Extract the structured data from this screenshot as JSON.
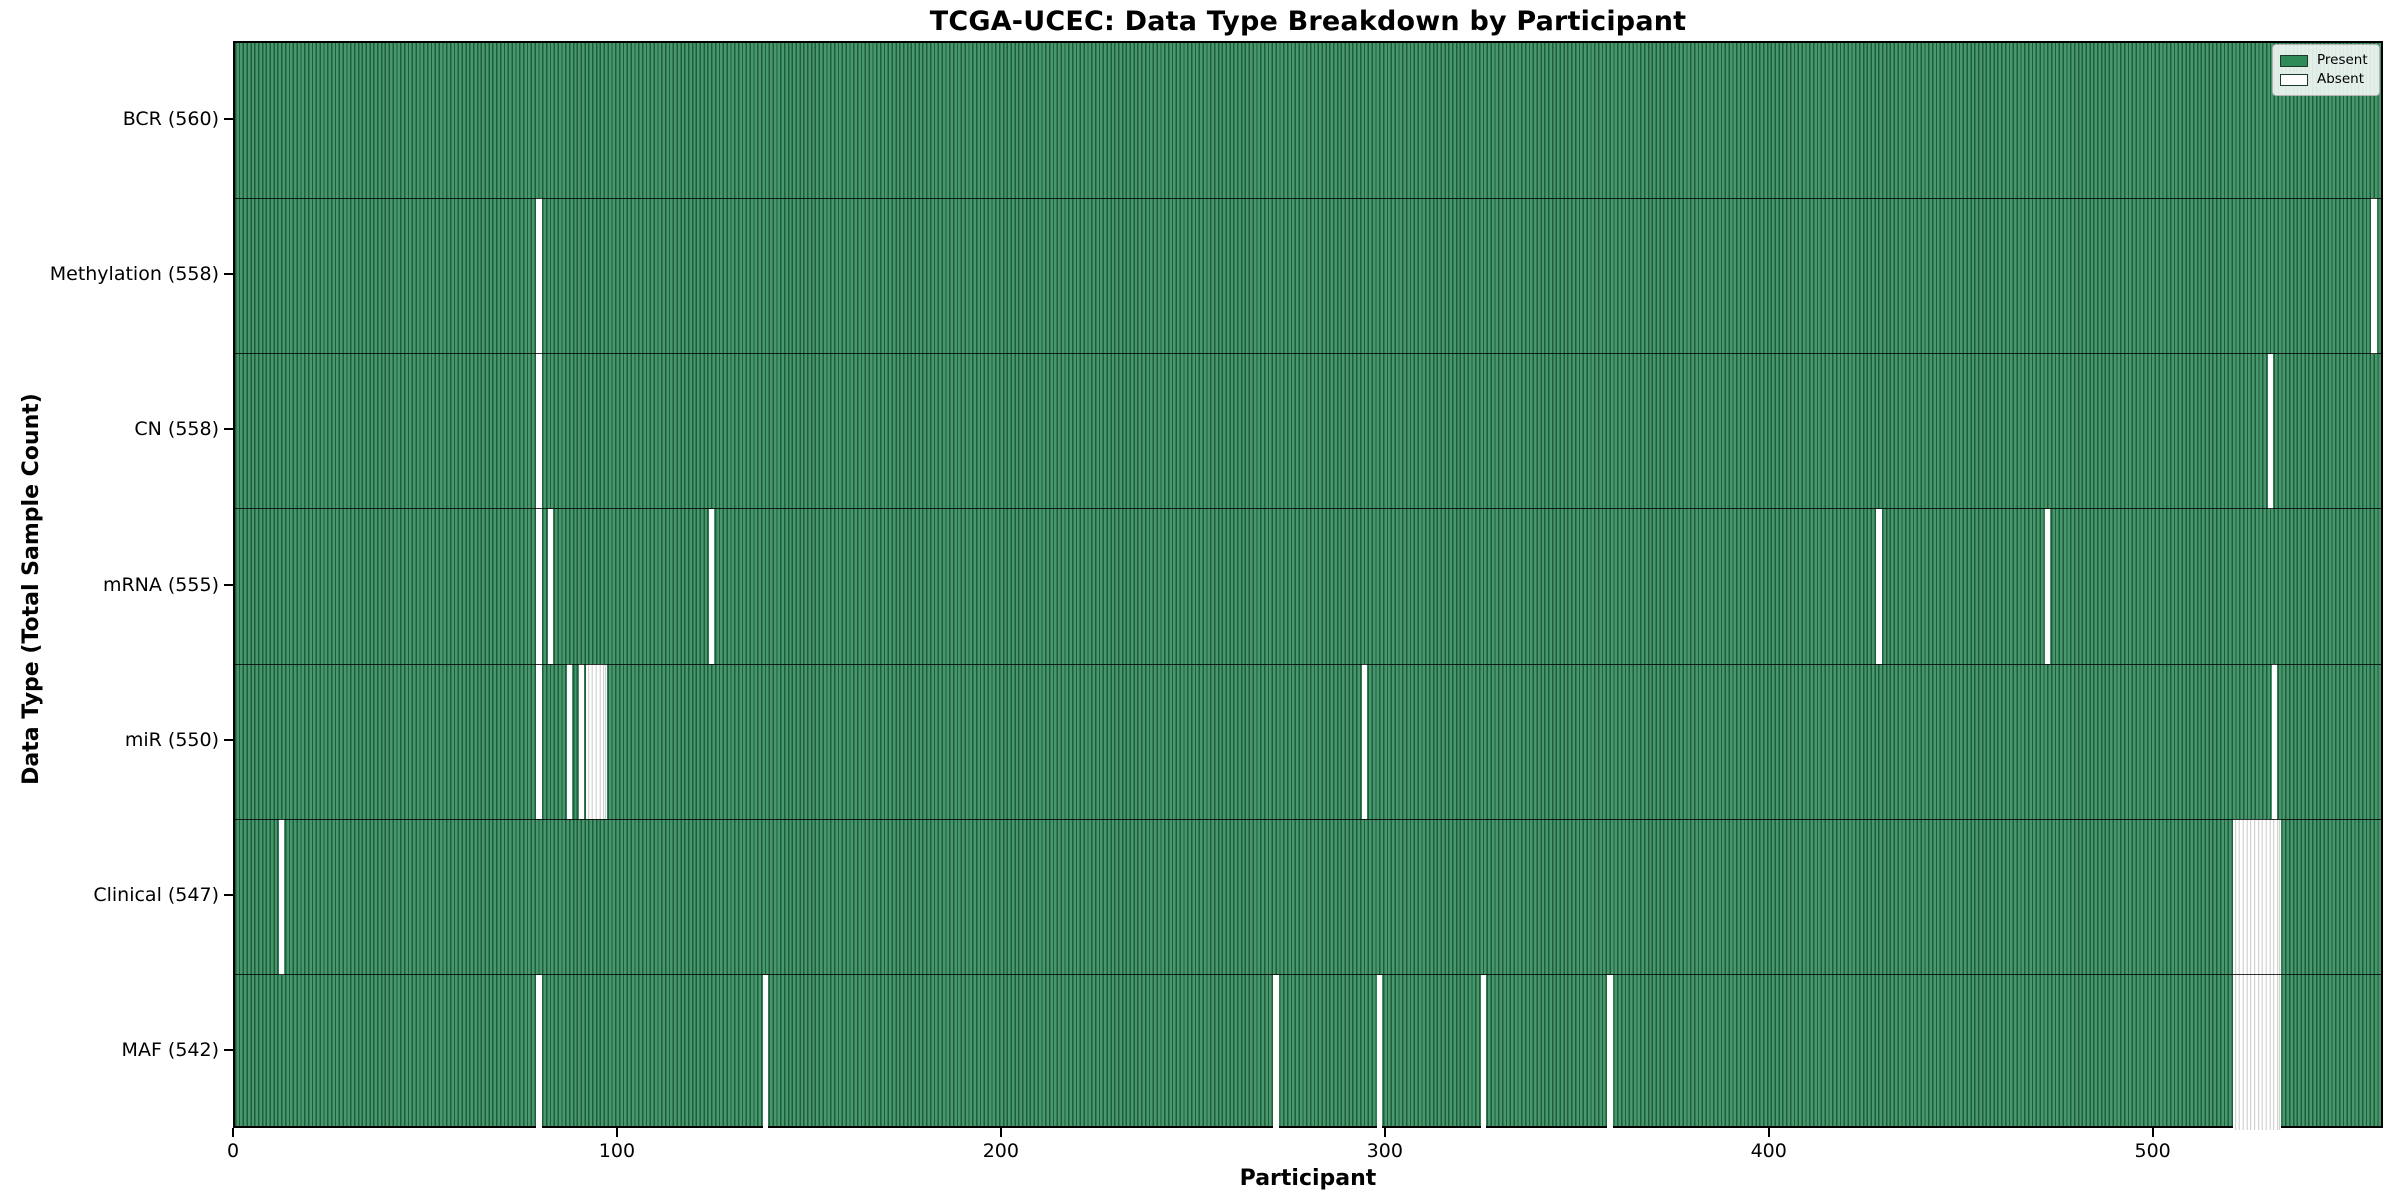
{
  "figure": {
    "title": "TCGA-UCEC: Data Type Breakdown by Participant",
    "xlabel": "Participant",
    "ylabel": "Data Type (Total Sample Count)"
  },
  "legend": {
    "position": "upper right",
    "entries": [
      {
        "label": "Present",
        "color": "#2e8b57"
      },
      {
        "label": "Absent",
        "color": "#ffffff"
      }
    ]
  },
  "colors": {
    "present_fill": "#2e8b57",
    "present_edge": "#1f5c3c",
    "absent_fill": "#ffffff",
    "absent_edge": "#c9c9c9",
    "spine": "#000000",
    "background": "#ffffff"
  },
  "chart_data": {
    "type": "heatmap",
    "title": "TCGA-UCEC: Data Type Breakdown by Participant",
    "xlabel": "Participant",
    "ylabel": "Data Type (Total Sample Count)",
    "x_range": [
      0,
      560
    ],
    "x_ticks": [
      0,
      100,
      200,
      300,
      400,
      500
    ],
    "total_participants": 560,
    "legend_entries": [
      "Present",
      "Absent"
    ],
    "grid": false,
    "rows": [
      {
        "label": "BCR (560)",
        "data_type": "BCR",
        "present_count": 560,
        "absent_participants": []
      },
      {
        "label": "Methylation (558)",
        "data_type": "Methylation",
        "present_count": 558,
        "absent_participants": [
          79,
          557
        ]
      },
      {
        "label": "CN (558)",
        "data_type": "CN",
        "present_count": 558,
        "absent_participants": [
          79,
          530
        ]
      },
      {
        "label": "mRNA (555)",
        "data_type": "mRNA",
        "present_count": 555,
        "absent_participants": [
          79,
          82,
          124,
          428,
          472
        ]
      },
      {
        "label": "miR (550)",
        "data_type": "miR",
        "present_count": 550,
        "absent_participants": [
          79,
          87,
          90,
          92,
          93,
          94,
          95,
          96,
          294,
          531
        ]
      },
      {
        "label": "Clinical (547)",
        "data_type": "Clinical",
        "present_count": 547,
        "absent_participants": [
          12,
          521,
          522,
          523,
          524,
          525,
          526,
          527,
          528,
          529,
          530,
          531,
          532
        ]
      },
      {
        "label": "MAF (542)",
        "data_type": "MAF",
        "present_count": 542,
        "absent_participants": [
          79,
          138,
          271,
          298,
          325,
          358,
          521,
          522,
          523,
          524,
          525,
          526,
          527,
          528,
          529,
          530,
          531,
          532
        ]
      }
    ]
  }
}
